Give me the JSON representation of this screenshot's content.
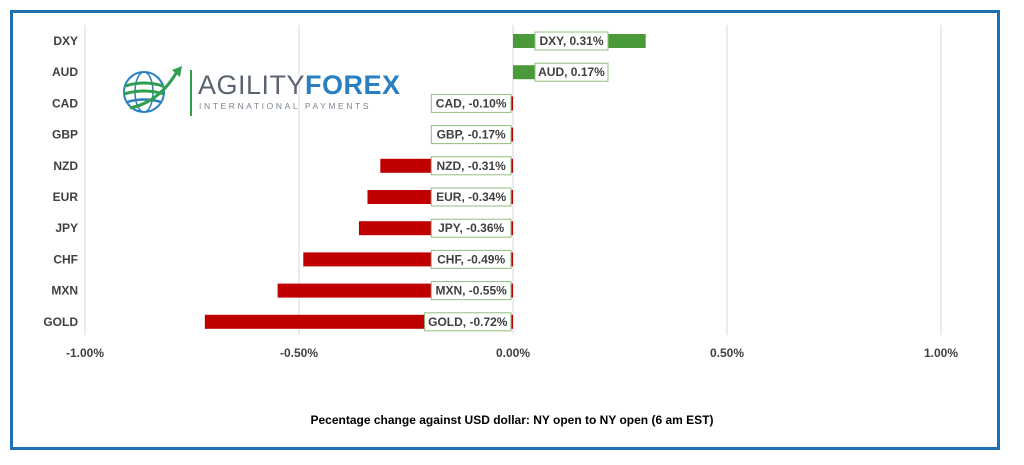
{
  "chart_data": {
    "type": "bar",
    "orientation": "horizontal",
    "categories": [
      "DXY",
      "AUD",
      "CAD",
      "GBP",
      "NZD",
      "EUR",
      "JPY",
      "CHF",
      "MXN",
      "GOLD"
    ],
    "values": [
      0.31,
      0.17,
      -0.1,
      -0.17,
      -0.31,
      -0.34,
      -0.36,
      -0.49,
      -0.55,
      -0.72
    ],
    "data_labels": [
      "DXY, 0.31%",
      "AUD, 0.17%",
      "CAD, -0.10%",
      "GBP, -0.17%",
      "NZD, -0.31%",
      "EUR, -0.34%",
      "JPY, -0.36%",
      "CHF, -0.49%",
      "MXN, -0.55%",
      "GOLD, -0.72%"
    ],
    "x_ticks": [
      -1.0,
      -0.5,
      0.0,
      0.5,
      1.0
    ],
    "x_tick_labels": [
      "-1.00%",
      "-0.50%",
      "0.00%",
      "0.50%",
      "1.00%"
    ],
    "xlim": [
      -1.0,
      1.0
    ],
    "grid": true,
    "colors": {
      "positive": "#4a9a3a",
      "negative": "#c00000",
      "frame": "#1f6fb5"
    },
    "caption": "Pecentage change against USD dollar:  NY open to NY open  (6 am EST)"
  },
  "logo": {
    "name_part1": "AGILITY",
    "name_part2": "FOREX",
    "tagline": "INTERNATIONAL PAYMENTS"
  }
}
